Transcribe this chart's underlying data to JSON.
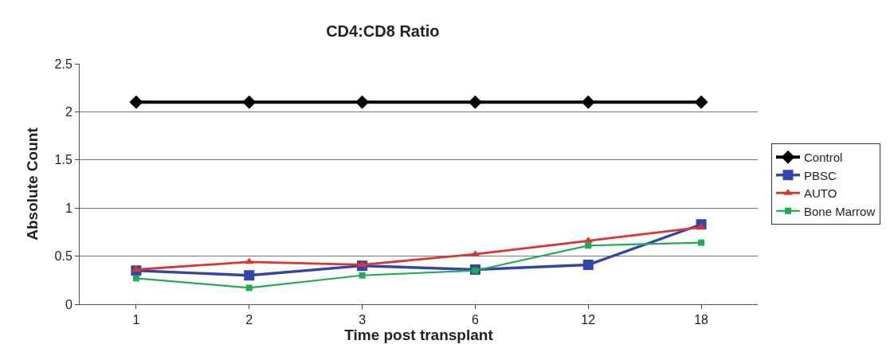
{
  "chart_data": {
    "type": "line",
    "title": "CD4:CD8 Ratio",
    "xlabel": "Time post transplant",
    "ylabel": "Absolute Count",
    "categories": [
      "1",
      "2",
      "3",
      "6",
      "12",
      "18"
    ],
    "series": [
      {
        "name": "Control",
        "color": "#000000",
        "marker": "diamond",
        "values": [
          2.1,
          2.1,
          2.1,
          2.1,
          2.1,
          2.1
        ]
      },
      {
        "name": "PBSC",
        "color": "#3344aa",
        "marker": "square",
        "values": [
          0.35,
          0.3,
          0.4,
          0.36,
          0.41,
          0.83
        ]
      },
      {
        "name": "AUTO",
        "color": "#dd3333",
        "marker": "triangle",
        "values": [
          0.36,
          0.44,
          0.41,
          0.52,
          0.66,
          0.8
        ]
      },
      {
        "name": "Bone Marrow",
        "color": "#22aa55",
        "marker": "square",
        "values": [
          0.27,
          0.17,
          0.3,
          0.35,
          0.61,
          0.64
        ]
      }
    ],
    "ylim": [
      0,
      2.5
    ],
    "yticks": [
      0,
      0.5,
      1,
      1.5,
      2,
      2.5
    ],
    "grid": "y",
    "legend": "right"
  }
}
